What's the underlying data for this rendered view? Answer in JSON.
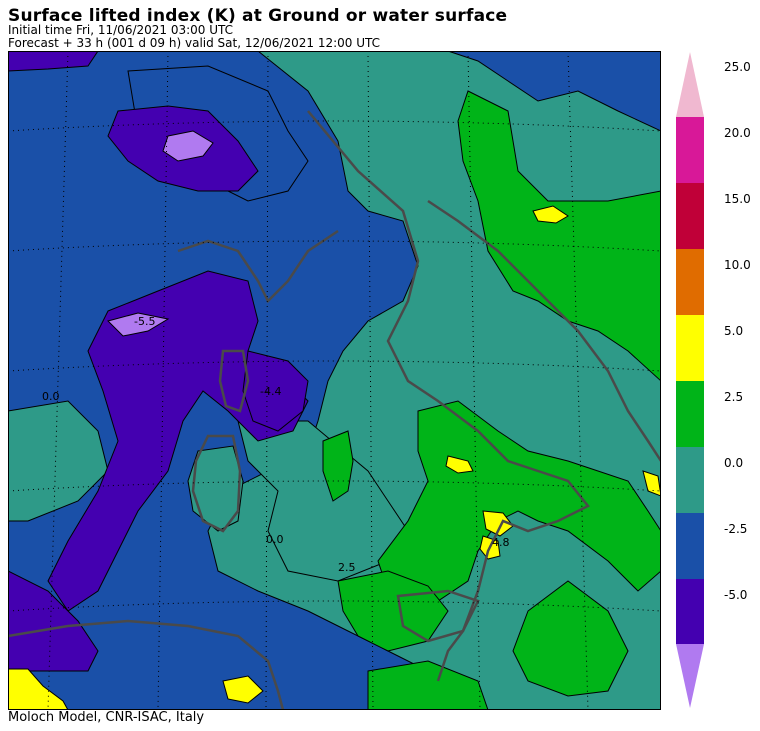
{
  "header": {
    "title": "Surface lifted index (K) at Ground or water surface",
    "initial_time": "Initial time  Fri, 11/06/2021  03:00 UTC",
    "forecast": "Forecast  +  33 h  (001 d 09 h)  valid Sat, 12/06/2021 12:00 UTC"
  },
  "footer": {
    "credit": "Moloch Model, CNR-ISAC, Italy"
  },
  "colorbar": {
    "labels": [
      "25.0",
      "20.0",
      "15.0",
      "10.0",
      "5.0",
      "2.5",
      "0.0",
      "-2.5",
      "-5.0"
    ],
    "colors": {
      "over": "#f0b8d0",
      "c20_25": "#d81898",
      "c15_20": "#c00038",
      "c10_15": "#e06c00",
      "c5_10": "#ffff00",
      "c2_5_5": "#00b418",
      "c0_2_5": "#2e9a88",
      "cm2_5_0": "#1a50a8",
      "cm5_m2_5": "#4400b0",
      "under": "#b07af0"
    }
  },
  "map": {
    "contour_labels": [
      "-5.5",
      "-4.4",
      "0.0",
      "0.0",
      "2.5",
      "4.8"
    ]
  }
}
